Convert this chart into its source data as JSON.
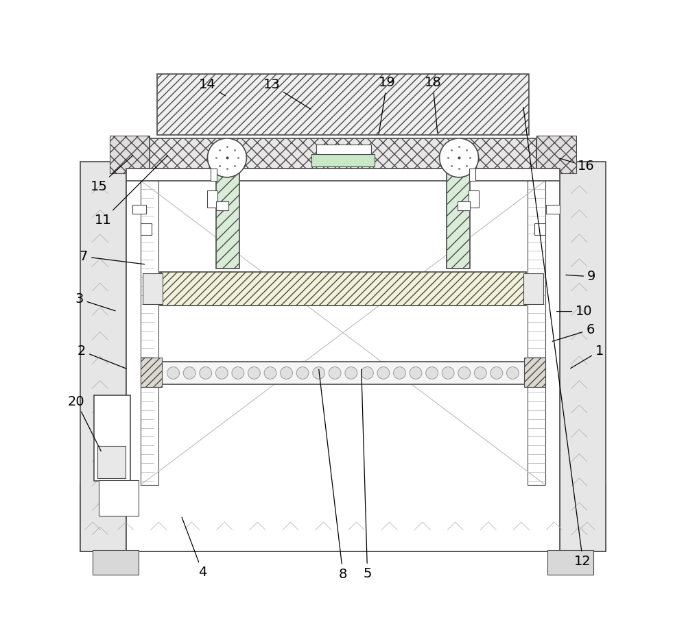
{
  "bg_color": "#ffffff",
  "lc": "#4a4a4a",
  "fig_width": 10.0,
  "fig_height": 9.27,
  "label_positions": {
    "1": {
      "point": [
        0.87,
        0.415
      ],
      "text": [
        0.92,
        0.445
      ]
    },
    "2": {
      "point": [
        0.148,
        0.415
      ],
      "text": [
        0.072,
        0.445
      ]
    },
    "3": {
      "point": [
        0.13,
        0.51
      ],
      "text": [
        0.068,
        0.53
      ]
    },
    "4": {
      "point": [
        0.235,
        0.175
      ],
      "text": [
        0.27,
        0.082
      ]
    },
    "5": {
      "point": [
        0.53,
        0.418
      ],
      "text": [
        0.54,
        0.08
      ]
    },
    "6": {
      "point": [
        0.84,
        0.46
      ],
      "text": [
        0.905,
        0.48
      ]
    },
    "7": {
      "point": [
        0.178,
        0.587
      ],
      "text": [
        0.075,
        0.6
      ]
    },
    "8": {
      "point": [
        0.46,
        0.418
      ],
      "text": [
        0.5,
        0.079
      ]
    },
    "9": {
      "point": [
        0.862,
        0.57
      ],
      "text": [
        0.907,
        0.567
      ]
    },
    "10": {
      "point": [
        0.847,
        0.51
      ],
      "text": [
        0.895,
        0.51
      ]
    },
    "11": {
      "point": [
        0.215,
        0.768
      ],
      "text": [
        0.107,
        0.66
      ]
    },
    "12": {
      "point": [
        0.795,
        0.848
      ],
      "text": [
        0.893,
        0.1
      ]
    },
    "13": {
      "point": [
        0.45,
        0.84
      ],
      "text": [
        0.383,
        0.882
      ]
    },
    "14": {
      "point": [
        0.31,
        0.862
      ],
      "text": [
        0.278,
        0.882
      ]
    },
    "15": {
      "point": [
        0.158,
        0.768
      ],
      "text": [
        0.1,
        0.715
      ]
    },
    "16": {
      "point": [
        0.852,
        0.762
      ],
      "text": [
        0.898,
        0.748
      ]
    },
    "18": {
      "point": [
        0.655,
        0.8
      ],
      "text": [
        0.647,
        0.885
      ]
    },
    "19": {
      "point": [
        0.558,
        0.797
      ],
      "text": [
        0.572,
        0.885
      ]
    },
    "20": {
      "point": [
        0.105,
        0.278
      ],
      "text": [
        0.063,
        0.362
      ]
    }
  }
}
